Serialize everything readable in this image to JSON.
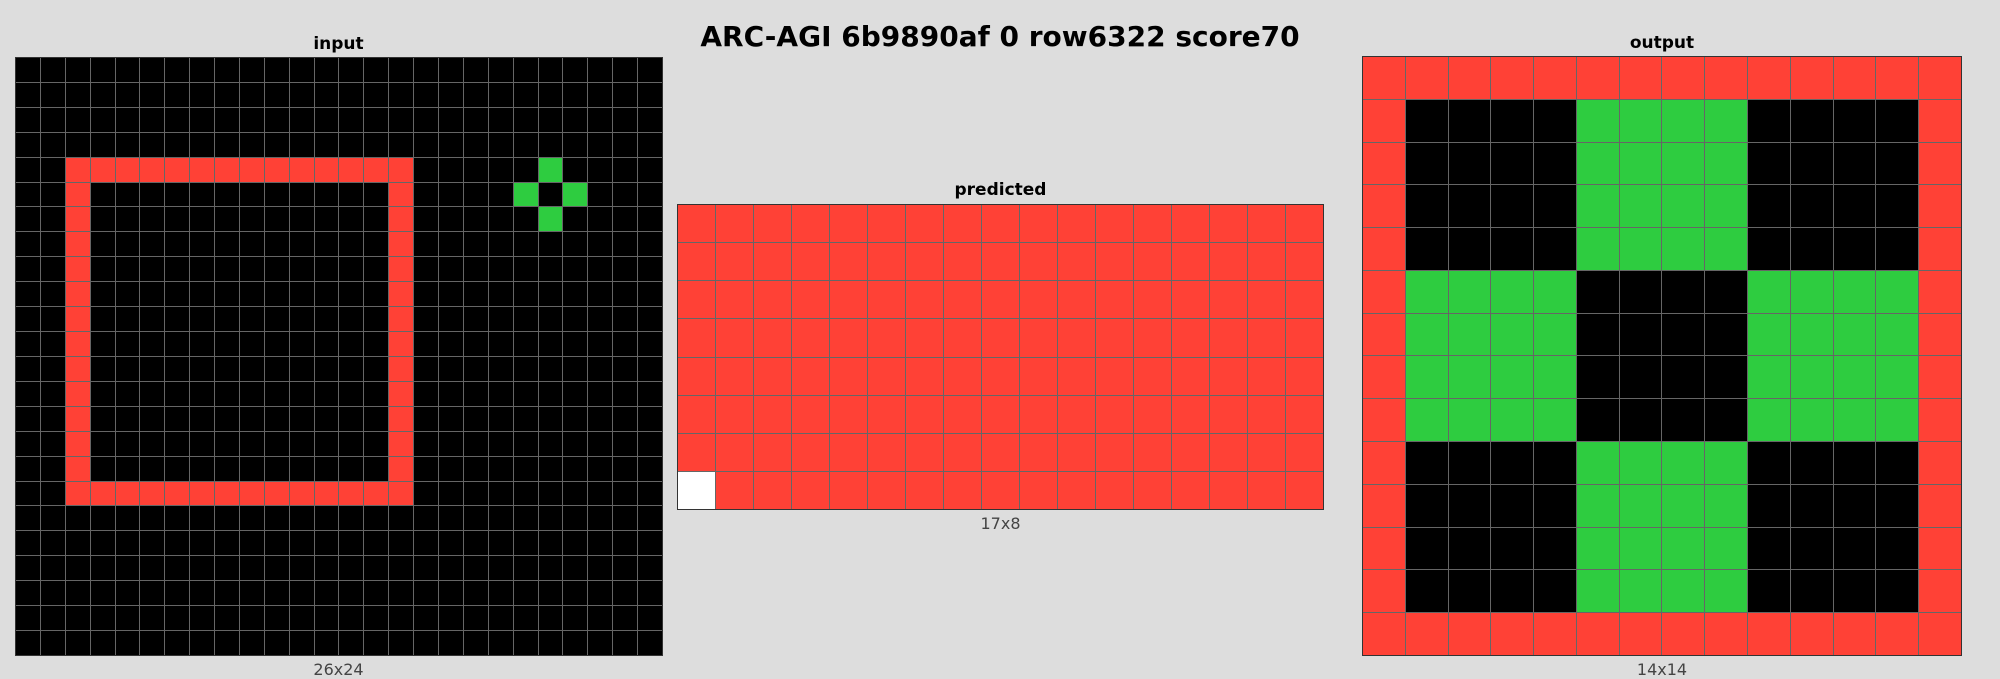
{
  "title": "ARC-AGI 6b9890af 0 row6322 score70",
  "palette": {
    "0": "#000000",
    "1": "#0074d9",
    "2": "#ff4136",
    "3": "#2ecc40",
    "4": "#ffdc00",
    "5": "#aaaaaa",
    "6": "#f012be",
    "7": "#ff851b",
    "8": "#7fdbff",
    "9": "#870c25",
    "10": "#ffffff"
  },
  "panels": {
    "input": {
      "label": "input",
      "dims": "26x24",
      "cols": 26,
      "rows": 24,
      "rects": [
        {
          "r0": 4,
          "r1": 17,
          "c0": 2,
          "c1": 15,
          "color": 2
        },
        {
          "r0": 5,
          "r1": 16,
          "c0": 3,
          "c1": 14,
          "color": 0
        },
        {
          "r0": 4,
          "r1": 4,
          "c0": 21,
          "c1": 21,
          "color": 3
        },
        {
          "r0": 5,
          "r1": 5,
          "c0": 20,
          "c1": 20,
          "color": 3
        },
        {
          "r0": 5,
          "r1": 5,
          "c0": 22,
          "c1": 22,
          "color": 3
        },
        {
          "r0": 6,
          "r1": 6,
          "c0": 21,
          "c1": 21,
          "color": 3
        }
      ]
    },
    "predicted": {
      "label": "predicted",
      "dims": "17x8",
      "cols": 17,
      "rows": 8,
      "fill": 2,
      "rects": [
        {
          "r0": 7,
          "r1": 7,
          "c0": 0,
          "c1": 0,
          "color": 10
        }
      ]
    },
    "output": {
      "label": "output",
      "dims": "14x14",
      "cols": 14,
      "rows": 14,
      "fill": 2,
      "rects": [
        {
          "r0": 1,
          "r1": 12,
          "c0": 1,
          "c1": 12,
          "color": 0
        },
        {
          "r0": 1,
          "r1": 4,
          "c0": 5,
          "c1": 8,
          "color": 3
        },
        {
          "r0": 5,
          "r1": 8,
          "c0": 1,
          "c1": 4,
          "color": 3
        },
        {
          "r0": 5,
          "r1": 8,
          "c0": 9,
          "c1": 12,
          "color": 3
        },
        {
          "r0": 9,
          "r1": 12,
          "c0": 5,
          "c1": 8,
          "color": 3
        }
      ]
    }
  }
}
